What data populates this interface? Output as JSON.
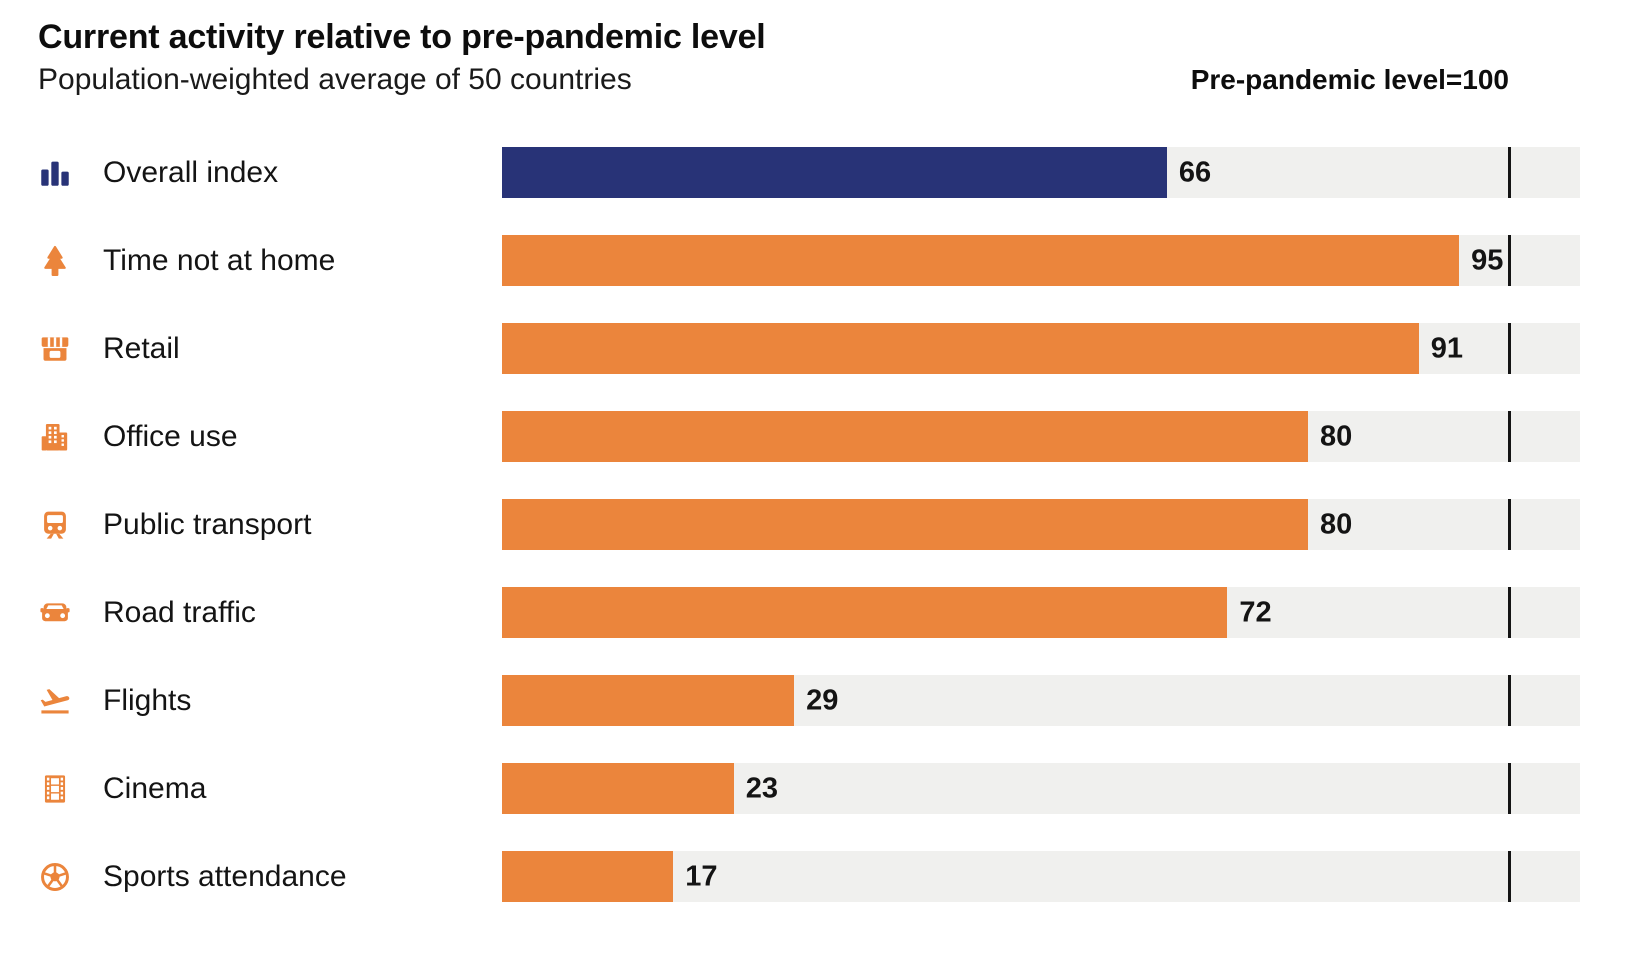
{
  "header": {
    "title": "Current activity relative to pre-pandemic level",
    "subtitle": "Population-weighted average of 50 countries",
    "axis_note": "Pre-pandemic level=100"
  },
  "colors": {
    "highlight_bar": "#283377",
    "bar": "#eb853c",
    "track": "#f0f0ee",
    "reference_line": "#141414",
    "text": "#141414"
  },
  "chart_data": {
    "type": "bar",
    "orientation": "horizontal",
    "title": "Current activity relative to pre-pandemic level",
    "subtitle": "Population-weighted average of 50 countries",
    "annotation": "Pre-pandemic level=100",
    "categories": [
      "Overall index",
      "Time not at home",
      "Retail",
      "Office use",
      "Public transport",
      "Road traffic",
      "Flights",
      "Cinema",
      "Sports attendance"
    ],
    "values": [
      66,
      95,
      91,
      80,
      80,
      72,
      29,
      23,
      17
    ],
    "reference_value": 100,
    "xlim": [
      0,
      107
    ],
    "grid": false,
    "legend": false,
    "rows": [
      {
        "label": "Overall index",
        "value": 66,
        "icon": "bar-chart",
        "color": "#283377"
      },
      {
        "label": "Time not at home",
        "value": 95,
        "icon": "tree",
        "color": "#eb853c"
      },
      {
        "label": "Retail",
        "value": 91,
        "icon": "storefront",
        "color": "#eb853c"
      },
      {
        "label": "Office use",
        "value": 80,
        "icon": "office-building",
        "color": "#eb853c"
      },
      {
        "label": "Public transport",
        "value": 80,
        "icon": "train",
        "color": "#eb853c"
      },
      {
        "label": "Road traffic",
        "value": 72,
        "icon": "car",
        "color": "#eb853c"
      },
      {
        "label": "Flights",
        "value": 29,
        "icon": "plane-takeoff",
        "color": "#eb853c"
      },
      {
        "label": "Cinema",
        "value": 23,
        "icon": "film-strip",
        "color": "#eb853c"
      },
      {
        "label": "Sports attendance",
        "value": 17,
        "icon": "soccer-ball",
        "color": "#eb853c"
      }
    ]
  }
}
